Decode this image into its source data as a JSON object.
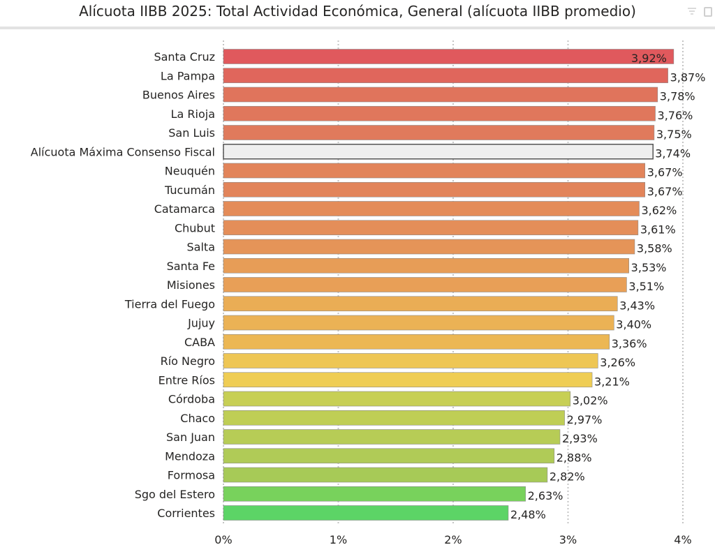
{
  "header": {
    "title": "Alícuota IIBB 2025: Total Actividad Económica, General (alícuota IIBB promedio)",
    "icons": [
      "filter-icon",
      "expand-icon"
    ]
  },
  "chart_data": {
    "type": "bar",
    "orientation": "horizontal",
    "title": "Alícuota IIBB 2025: Total Actividad Económica, General (alícuota IIBB promedio)",
    "xlabel": "",
    "ylabel": "",
    "xlim": [
      0,
      4
    ],
    "x_ticks": [
      "0%",
      "1%",
      "2%",
      "3%",
      "4%"
    ],
    "grid": "vertical dotted",
    "categories": [
      "Santa Cruz",
      "La Pampa",
      "Buenos Aires",
      "La Rioja",
      "San Luis",
      "Alícuota Máxima Consenso Fiscal",
      "Neuquén",
      "Tucumán",
      "Catamarca",
      "Chubut",
      "Salta",
      "Santa Fe",
      "Misiones",
      "Tierra del Fuego",
      "Jujuy",
      "CABA",
      "Río Negro",
      "Entre Ríos",
      "Córdoba",
      "Chaco",
      "San Juan",
      "Mendoza",
      "Formosa",
      "Sgo del Estero",
      "Corrientes"
    ],
    "values": [
      3.92,
      3.87,
      3.78,
      3.76,
      3.75,
      3.74,
      3.67,
      3.67,
      3.62,
      3.61,
      3.58,
      3.53,
      3.51,
      3.43,
      3.4,
      3.36,
      3.26,
      3.21,
      3.02,
      2.97,
      2.93,
      2.88,
      2.82,
      2.63,
      2.48
    ],
    "value_labels": [
      "3,92%",
      "3,87%",
      "3,78%",
      "3,76%",
      "3,75%",
      "3,74%",
      "3,67%",
      "3,67%",
      "3,62%",
      "3,61%",
      "3,58%",
      "3,53%",
      "3,51%",
      "3,43%",
      "3,40%",
      "3,36%",
      "3,26%",
      "3,21%",
      "3,02%",
      "2,97%",
      "2,93%",
      "2,88%",
      "2,82%",
      "2,63%",
      "2,48%"
    ],
    "colors": [
      "#e0595d",
      "#e0665c",
      "#e0745c",
      "#e0775c",
      "#e07a5c",
      "#efefef",
      "#e2845a",
      "#e2845a",
      "#e48c59",
      "#e48e59",
      "#e59458",
      "#e79d57",
      "#e89f57",
      "#eaad55",
      "#ebb255",
      "#ecb754",
      "#eec654",
      "#efcd54",
      "#c7cf55",
      "#bfce55",
      "#b7cc56",
      "#b0cb57",
      "#a7ca57",
      "#78d25c",
      "#5cd466"
    ],
    "highlight": {
      "category": "Alícuota Máxima Consenso Fiscal",
      "color": "#efefef",
      "border": "#555555"
    }
  }
}
